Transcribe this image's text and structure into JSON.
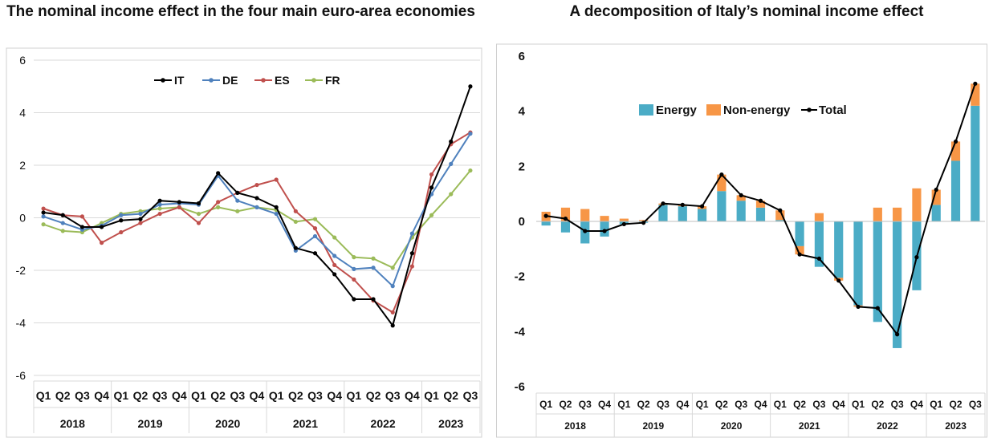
{
  "chart_data": [
    {
      "type": "line",
      "title": "The nominal income effect in the four main euro-area economies",
      "x": [
        "Q1",
        "Q2",
        "Q3",
        "Q4",
        "Q1",
        "Q2",
        "Q3",
        "Q4",
        "Q1",
        "Q2",
        "Q3",
        "Q4",
        "Q1",
        "Q2",
        "Q3",
        "Q4",
        "Q1",
        "Q2",
        "Q3",
        "Q4",
        "Q1",
        "Q2",
        "Q3"
      ],
      "years": [
        "2018",
        "2019",
        "2020",
        "2021",
        "2022",
        "2023"
      ],
      "ylim": [
        -6,
        6
      ],
      "yticks": [
        "6",
        "4",
        "2",
        "0",
        "-2",
        "-4",
        "-6"
      ],
      "grid": true,
      "legend_position": "top",
      "series": [
        {
          "name": "IT",
          "color": "#000000",
          "values": [
            0.2,
            0.1,
            -0.35,
            -0.35,
            -0.1,
            -0.05,
            0.65,
            0.6,
            0.55,
            1.7,
            0.95,
            0.75,
            0.4,
            -1.15,
            -1.35,
            -2.15,
            -3.1,
            -3.1,
            -4.1,
            -1.35,
            1.15,
            2.9,
            5.0
          ]
        },
        {
          "name": "DE",
          "color": "#4F81BD",
          "values": [
            0.05,
            -0.2,
            -0.45,
            -0.3,
            0.1,
            0.15,
            0.5,
            0.55,
            0.5,
            1.6,
            0.65,
            0.4,
            0.15,
            -1.25,
            -0.7,
            -1.45,
            -1.95,
            -1.9,
            -2.6,
            -0.6,
            0.9,
            2.05,
            3.2
          ]
        },
        {
          "name": "ES",
          "color": "#C0504D",
          "values": [
            0.35,
            0.1,
            0.05,
            -0.95,
            -0.55,
            -0.2,
            0.15,
            0.4,
            -0.2,
            0.6,
            0.95,
            1.25,
            1.45,
            0.25,
            -0.4,
            -1.8,
            -2.35,
            -3.15,
            -3.6,
            -1.85,
            1.65,
            2.8,
            3.25
          ]
        },
        {
          "name": "FR",
          "color": "#9BBB59",
          "values": [
            -0.25,
            -0.5,
            -0.55,
            -0.2,
            0.15,
            0.25,
            0.35,
            0.4,
            0.15,
            0.4,
            0.25,
            0.4,
            0.3,
            -0.15,
            -0.05,
            -0.75,
            -1.5,
            -1.55,
            -1.9,
            -0.75,
            0.1,
            0.9,
            1.8
          ]
        }
      ]
    },
    {
      "type": "bar",
      "title": "A decomposition of Italy’s nominal income effect",
      "x": [
        "Q1",
        "Q2",
        "Q3",
        "Q4",
        "Q1",
        "Q2",
        "Q3",
        "Q4",
        "Q1",
        "Q2",
        "Q3",
        "Q4",
        "Q1",
        "Q2",
        "Q3",
        "Q4",
        "Q1",
        "Q2",
        "Q3",
        "Q4",
        "Q1",
        "Q2",
        "Q3"
      ],
      "years": [
        "2018",
        "2019",
        "2020",
        "2021",
        "2022",
        "2023"
      ],
      "ylim": [
        -6,
        6
      ],
      "yticks": [
        "6",
        "4",
        "2",
        "0",
        "-2",
        "-4",
        "-6"
      ],
      "grid": false,
      "legend_position": "top",
      "stacked": true,
      "series": [
        {
          "name": "Energy",
          "color": "#4BACC6",
          "values": [
            -0.15,
            -0.4,
            -0.8,
            -0.55,
            -0.1,
            -0.05,
            0.6,
            0.55,
            0.45,
            1.1,
            0.75,
            0.5,
            0.05,
            -0.9,
            -1.65,
            -2.05,
            -3.05,
            -3.65,
            -4.6,
            -2.5,
            0.6,
            2.2,
            4.2
          ]
        },
        {
          "name": "Non-energy",
          "color": "#F79646",
          "values": [
            0.35,
            0.5,
            0.45,
            0.2,
            0.1,
            0.05,
            0.05,
            0.05,
            0.1,
            0.6,
            0.2,
            0.25,
            0.35,
            -0.3,
            0.3,
            -0.1,
            -0.05,
            0.5,
            0.5,
            1.2,
            0.55,
            0.7,
            0.8
          ]
        },
        {
          "name": "Total",
          "color": "#000000",
          "type": "line",
          "values": [
            0.2,
            0.1,
            -0.35,
            -0.35,
            -0.1,
            -0.05,
            0.65,
            0.6,
            0.55,
            1.7,
            0.95,
            0.75,
            0.4,
            -1.2,
            -1.35,
            -2.15,
            -3.1,
            -3.15,
            -4.1,
            -1.3,
            1.15,
            2.9,
            5.0
          ]
        }
      ]
    }
  ]
}
